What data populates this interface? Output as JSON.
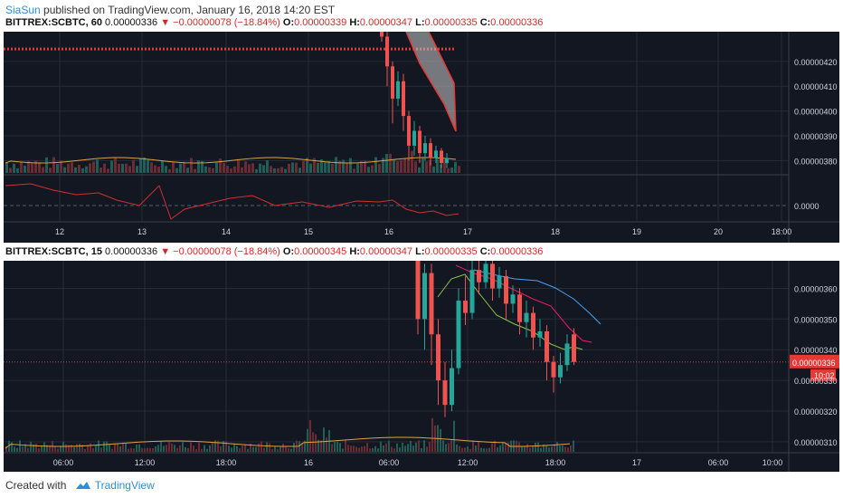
{
  "header": {
    "user": "SiaSun",
    "text": " published on TradingView.com, January 16, 2018 14:20 EST"
  },
  "colors": {
    "bg": "#131722",
    "up": "#26a69a",
    "down": "#ef5350",
    "grid": "#262b38",
    "axis_text": "#d1d4dc",
    "price_tag": "#e53935"
  },
  "chart_data": [
    {
      "type": "candlestick",
      "symbol": "BITTREX:SCBTC",
      "interval": "60",
      "info": {
        "symbol_label": "BITTREX:SCBTC, 60",
        "last": "0.00000336",
        "change": "−0.00000078 (−18.84%)",
        "open_label": "O:",
        "open": "0.00000339",
        "high_label": "H:",
        "high": "0.00000347",
        "low_label": "L:",
        "low": "0.00000335",
        "close_label": "C:",
        "close": "0.00000336"
      },
      "x_ticks": [
        "12",
        "13",
        "14",
        "15",
        "16",
        "17",
        "18",
        "19",
        "20",
        "18:00"
      ],
      "y_ticks": [
        "0.00000420",
        "0.00000410",
        "0.00000400",
        "0.00000390",
        "0.00000380"
      ],
      "ylim": [
        3.75e-06,
        4.32e-06
      ],
      "resistance_line": 4.25e-06,
      "oscillator": {
        "y_tick": "0.0000",
        "ylim": [
          -1,
          1
        ]
      },
      "candles": [
        {
          "o": 4.45e-06,
          "c": 4.3e-06,
          "h": 4.48e-06,
          "l": 4.28e-06
        },
        {
          "o": 4.3e-06,
          "c": 4.18e-06,
          "h": 4.32e-06,
          "l": 4.1e-06
        },
        {
          "o": 4.18e-06,
          "c": 4.05e-06,
          "h": 4.2e-06,
          "l": 3.95e-06
        },
        {
          "o": 4.05e-06,
          "c": 4.12e-06,
          "h": 4.16e-06,
          "l": 4.02e-06
        },
        {
          "o": 4.12e-06,
          "c": 3.98e-06,
          "h": 4.15e-06,
          "l": 3.92e-06
        },
        {
          "o": 3.98e-06,
          "c": 3.86e-06,
          "h": 4e-06,
          "l": 3.8e-06
        },
        {
          "o": 3.86e-06,
          "c": 3.92e-06,
          "h": 3.96e-06,
          "l": 3.82e-06
        },
        {
          "o": 3.92e-06,
          "c": 3.83e-06,
          "h": 3.94e-06,
          "l": 3.79e-06
        },
        {
          "o": 3.83e-06,
          "c": 3.87e-06,
          "h": 3.9e-06,
          "l": 3.8e-06
        },
        {
          "o": 3.87e-06,
          "c": 3.81e-06,
          "h": 3.89e-06,
          "l": 3.78e-06
        },
        {
          "o": 3.81e-06,
          "c": 3.84e-06,
          "h": 3.86e-06,
          "l": 3.79e-06
        },
        {
          "o": 3.84e-06,
          "c": 3.79e-06,
          "h": 3.85e-06,
          "l": 3.77e-06
        },
        {
          "o": 3.79e-06,
          "c": 3.81e-06,
          "h": 3.83e-06,
          "l": 3.77e-06
        }
      ]
    },
    {
      "type": "candlestick",
      "symbol": "BITTREX:SCBTC",
      "interval": "15",
      "info": {
        "symbol_label": "BITTREX:SCBTC, 15",
        "last": "0.00000336",
        "change": "−0.00000078 (−18.84%)",
        "open_label": "O:",
        "open": "0.00000345",
        "high_label": "H:",
        "high": "0.00000347",
        "low_label": "L:",
        "low": "0.00000335",
        "close_label": "C:",
        "close": "0.00000336"
      },
      "x_ticks": [
        "06:00",
        "12:00",
        "18:00",
        "16",
        "06:00",
        "12:00",
        "18:00",
        "17",
        "06:00",
        "10:00"
      ],
      "y_ticks": [
        "0.00000360",
        "0.00000350",
        "0.00000340",
        "0.00000330",
        "0.00000320",
        "0.00000310"
      ],
      "ylim": [
        3.07e-06,
        3.69e-06
      ],
      "last_price": 3.36e-06,
      "last_price_label": "0.00000336",
      "countdown": "10:02",
      "candles": [
        {
          "o": 3.7e-06,
          "c": 3.5e-06,
          "h": 3.72e-06,
          "l": 3.45e-06
        },
        {
          "o": 3.5e-06,
          "c": 3.65e-06,
          "h": 3.68e-06,
          "l": 3.4e-06
        },
        {
          "o": 3.65e-06,
          "c": 3.45e-06,
          "h": 3.68e-06,
          "l": 3.35e-06
        },
        {
          "o": 3.45e-06,
          "c": 3.3e-06,
          "h": 3.5e-06,
          "l": 3.22e-06
        },
        {
          "o": 3.3e-06,
          "c": 3.22e-06,
          "h": 3.36e-06,
          "l": 3.18e-06
        },
        {
          "o": 3.22e-06,
          "c": 3.34e-06,
          "h": 3.4e-06,
          "l": 3.2e-06
        },
        {
          "o": 3.34e-06,
          "c": 3.56e-06,
          "h": 3.6e-06,
          "l": 3.32e-06
        },
        {
          "o": 3.56e-06,
          "c": 3.52e-06,
          "h": 3.64e-06,
          "l": 3.48e-06
        },
        {
          "o": 3.52e-06,
          "c": 3.66e-06,
          "h": 3.7e-06,
          "l": 3.5e-06
        },
        {
          "o": 3.66e-06,
          "c": 3.62e-06,
          "h": 3.72e-06,
          "l": 3.58e-06
        },
        {
          "o": 3.62e-06,
          "c": 3.68e-06,
          "h": 3.71e-06,
          "l": 3.6e-06
        },
        {
          "o": 3.68e-06,
          "c": 3.6e-06,
          "h": 3.7e-06,
          "l": 3.56e-06
        },
        {
          "o": 3.6e-06,
          "c": 3.64e-06,
          "h": 3.67e-06,
          "l": 3.57e-06
        },
        {
          "o": 3.64e-06,
          "c": 3.55e-06,
          "h": 3.66e-06,
          "l": 3.5e-06
        },
        {
          "o": 3.55e-06,
          "c": 3.58e-06,
          "h": 3.61e-06,
          "l": 3.52e-06
        },
        {
          "o": 3.58e-06,
          "c": 3.49e-06,
          "h": 3.6e-06,
          "l": 3.45e-06
        },
        {
          "o": 3.49e-06,
          "c": 3.52e-06,
          "h": 3.56e-06,
          "l": 3.44e-06
        },
        {
          "o": 3.52e-06,
          "c": 3.44e-06,
          "h": 3.54e-06,
          "l": 3.4e-06
        },
        {
          "o": 3.44e-06,
          "c": 3.46e-06,
          "h": 3.5e-06,
          "l": 3.41e-06
        },
        {
          "o": 3.46e-06,
          "c": 3.36e-06,
          "h": 3.48e-06,
          "l": 3.3e-06
        },
        {
          "o": 3.36e-06,
          "c": 3.31e-06,
          "h": 3.38e-06,
          "l": 3.26e-06
        },
        {
          "o": 3.31e-06,
          "c": 3.35e-06,
          "h": 3.39e-06,
          "l": 3.29e-06
        },
        {
          "o": 3.35e-06,
          "c": 3.42e-06,
          "h": 3.45e-06,
          "l": 3.33e-06
        },
        {
          "o": 3.45e-06,
          "c": 3.36e-06,
          "h": 3.47e-06,
          "l": 3.35e-06
        }
      ]
    }
  ]
}
